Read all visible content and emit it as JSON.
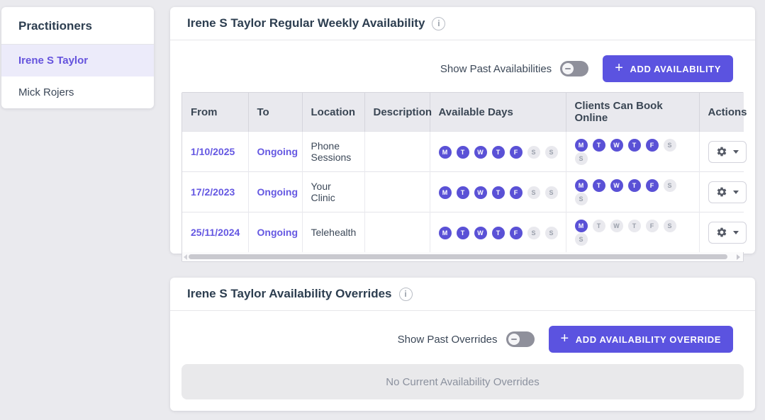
{
  "colors": {
    "accent": "#5b53e0",
    "day_active": "#5a51d6",
    "link": "#6558e2",
    "selected_item_bg": "#ecebfa",
    "page_bg": "#eaeaee",
    "title_text": "#2d3e50"
  },
  "icons": {
    "plus": "+",
    "info": "i"
  },
  "sidebar": {
    "title": "Practitioners",
    "items": [
      {
        "label": "Irene S Taylor",
        "selected": true
      },
      {
        "label": "Mick Rojers",
        "selected": false
      }
    ]
  },
  "weekly_panel": {
    "title": "Irene S Taylor Regular Weekly Availability",
    "toggle_label": "Show Past Availabilities",
    "toggle_state": "off",
    "add_button_label": "ADD AVAILABILITY",
    "table": {
      "columns": [
        "From",
        "To",
        "Location",
        "Description",
        "Available Days",
        "Clients Can Book Online",
        "Actions"
      ],
      "day_letters": [
        "M",
        "T",
        "W",
        "T",
        "F",
        "S",
        "S"
      ],
      "rows": [
        {
          "from": "1/10/2025",
          "to": "Ongoing",
          "location": "Phone Sessions",
          "description": "",
          "available_days": [
            1,
            1,
            1,
            1,
            1,
            0,
            0
          ],
          "book_online": [
            1,
            1,
            1,
            1,
            1,
            0,
            0
          ]
        },
        {
          "from": "17/2/2023",
          "to": "Ongoing",
          "location": "Your Clinic",
          "description": "",
          "available_days": [
            1,
            1,
            1,
            1,
            1,
            0,
            0
          ],
          "book_online": [
            1,
            1,
            1,
            1,
            1,
            0,
            0
          ]
        },
        {
          "from": "25/11/2024",
          "to": "Ongoing",
          "location": "Telehealth",
          "description": "",
          "available_days": [
            1,
            1,
            1,
            1,
            1,
            0,
            0
          ],
          "book_online": [
            1,
            0,
            0,
            0,
            0,
            0,
            0
          ]
        }
      ]
    }
  },
  "overrides_panel": {
    "title": "Irene S Taylor Availability Overrides",
    "toggle_label": "Show Past Overrides",
    "toggle_state": "off",
    "add_button_label": "ADD AVAILABILITY OVERRIDE",
    "empty_message": "No Current Availability Overrides"
  }
}
